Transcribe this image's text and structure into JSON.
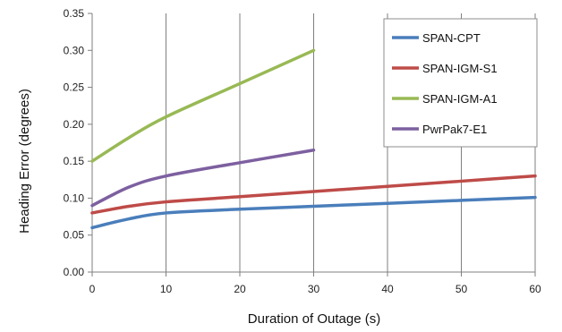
{
  "chart_data": {
    "type": "line",
    "title": "",
    "xlabel": "Duration of Outage (s)",
    "ylabel": "Heading Error (degrees)",
    "xlim": [
      0,
      60
    ],
    "ylim": [
      0,
      0.35
    ],
    "x_ticks": [
      "0",
      "10",
      "20",
      "30",
      "40",
      "50",
      "60"
    ],
    "y_ticks": [
      "0.00",
      "0.05",
      "0.10",
      "0.15",
      "0.20",
      "0.25",
      "0.30",
      "0.35"
    ],
    "grid": "vertical",
    "legend_position": "top-right",
    "series": [
      {
        "name": "SPAN-CPT",
        "color": "#4a7ebb",
        "x": [
          0,
          5,
          10,
          20,
          30,
          40,
          50,
          60
        ],
        "y": [
          0.06,
          0.072,
          0.08,
          0.085,
          0.089,
          0.093,
          0.097,
          0.101
        ]
      },
      {
        "name": "SPAN-IGM-S1",
        "color": "#be4b48",
        "x": [
          0,
          5,
          10,
          20,
          30,
          40,
          50,
          60
        ],
        "y": [
          0.08,
          0.089,
          0.095,
          0.102,
          0.109,
          0.116,
          0.123,
          0.13
        ]
      },
      {
        "name": "SPAN-IGM-A1",
        "color": "#98b954",
        "x": [
          0,
          5,
          10,
          20,
          30
        ],
        "y": [
          0.15,
          0.182,
          0.21,
          0.255,
          0.3
        ]
      },
      {
        "name": "PwrPak7-E1",
        "color": "#7d60a0",
        "x": [
          0,
          5,
          10,
          20,
          30
        ],
        "y": [
          0.09,
          0.115,
          0.13,
          0.148,
          0.165
        ]
      }
    ]
  }
}
